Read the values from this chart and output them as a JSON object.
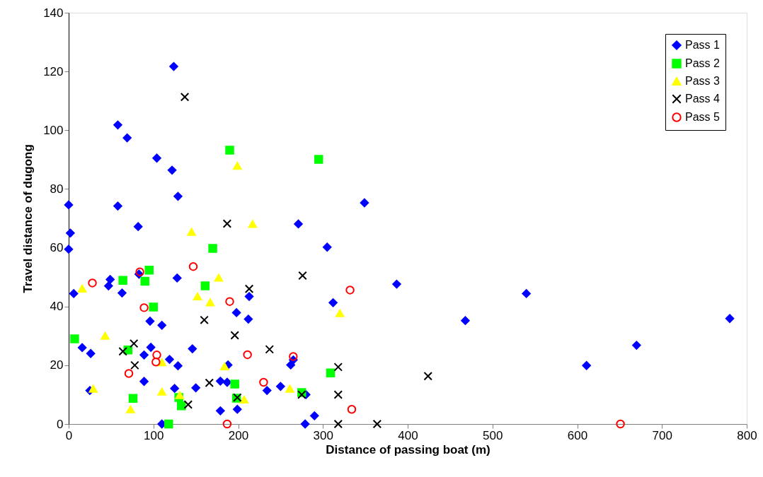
{
  "chart_data": {
    "type": "scatter",
    "xlabel": "Distance of passing boat (m)",
    "ylabel": "Travel distance of dugong",
    "xlim": [
      0,
      800
    ],
    "xticks": [
      0,
      100,
      200,
      300,
      400,
      500,
      600,
      700,
      800
    ],
    "ylim": [
      0,
      140
    ],
    "yticks": [
      0,
      20,
      40,
      60,
      80,
      100,
      120,
      140
    ],
    "grid": false,
    "legend": "top right",
    "series": [
      {
        "name": "Pass 1",
        "color": "#0000ff",
        "marker": "diamond",
        "x": [
          124,
          58,
          69,
          104,
          122,
          129,
          0,
          58,
          82,
          2,
          0,
          6,
          63,
          49,
          47,
          83,
          128,
          96,
          110,
          16,
          26,
          25,
          89,
          97,
          119,
          129,
          89,
          146,
          125,
          150,
          110,
          179,
          199,
          188,
          179,
          187,
          198,
          213,
          212,
          234,
          250,
          262,
          265,
          271,
          280,
          279,
          290,
          305,
          312,
          349,
          387,
          468,
          540,
          611,
          670,
          780
        ],
        "values": [
          121.7,
          101.8,
          97.4,
          90.5,
          86.4,
          77.5,
          74.6,
          74.2,
          67.2,
          65,
          59.5,
          44.4,
          44.6,
          49.2,
          47,
          51,
          49.7,
          35,
          33.6,
          26,
          24,
          11.4,
          23.5,
          26.1,
          22,
          19.8,
          14.5,
          25.6,
          12.1,
          12.3,
          0,
          4.5,
          5,
          20.1,
          14.6,
          14.2,
          37.9,
          43.4,
          35.7,
          11.4,
          12.8,
          20.1,
          21.8,
          68.1,
          10,
          0,
          2.8,
          60.2,
          41.3,
          75.3,
          47.6,
          35.2,
          44.4,
          19.9,
          26.8,
          35.9
        ]
      },
      {
        "name": "Pass 2",
        "color": "#00ff00",
        "marker": "square",
        "x": [
          190,
          170,
          295,
          95,
          64,
          90,
          161,
          100,
          7,
          70,
          76,
          130,
          133,
          196,
          198,
          118,
          309,
          275
        ],
        "values": [
          93.2,
          59.8,
          90.1,
          52.4,
          48.9,
          48.6,
          47,
          39.8,
          29,
          25.2,
          8.7,
          9,
          6.2,
          13.6,
          8.8,
          0,
          17.4,
          10.7
        ]
      },
      {
        "name": "Pass 3",
        "color": "#ffff00",
        "marker": "triangle",
        "x": [
          199,
          145,
          217,
          177,
          16,
          152,
          167,
          43,
          110,
          184,
          29,
          110,
          73,
          131,
          207,
          320,
          261
        ],
        "values": [
          87.9,
          65.4,
          68.1,
          49.8,
          46.1,
          43.4,
          41.4,
          30,
          21,
          19.6,
          12,
          11,
          5,
          9.8,
          8.3,
          37.7,
          12
        ]
      },
      {
        "name": "Pass 4",
        "color": "#000000",
        "marker": "cross",
        "x": [
          137,
          187,
          213,
          276,
          160,
          196,
          237,
          77,
          64,
          78,
          166,
          141,
          199,
          275,
          318,
          318,
          318,
          364,
          424
        ],
        "values": [
          111.3,
          68.2,
          46,
          50.5,
          35.4,
          30.2,
          25.4,
          27.4,
          24.7,
          20,
          14,
          6.6,
          9,
          10,
          19.4,
          10,
          0,
          0,
          16.3
        ]
      },
      {
        "name": "Pass 5",
        "color": "#ff0000",
        "marker": "circle",
        "x": [
          28,
          84,
          147,
          89,
          190,
          332,
          211,
          265,
          104,
          103,
          71,
          230,
          334,
          187,
          651
        ],
        "values": [
          48,
          51.8,
          53.6,
          39.6,
          41.7,
          45.6,
          23.6,
          23,
          23.5,
          21.1,
          17.2,
          14.2,
          5,
          0,
          0
        ]
      }
    ]
  }
}
